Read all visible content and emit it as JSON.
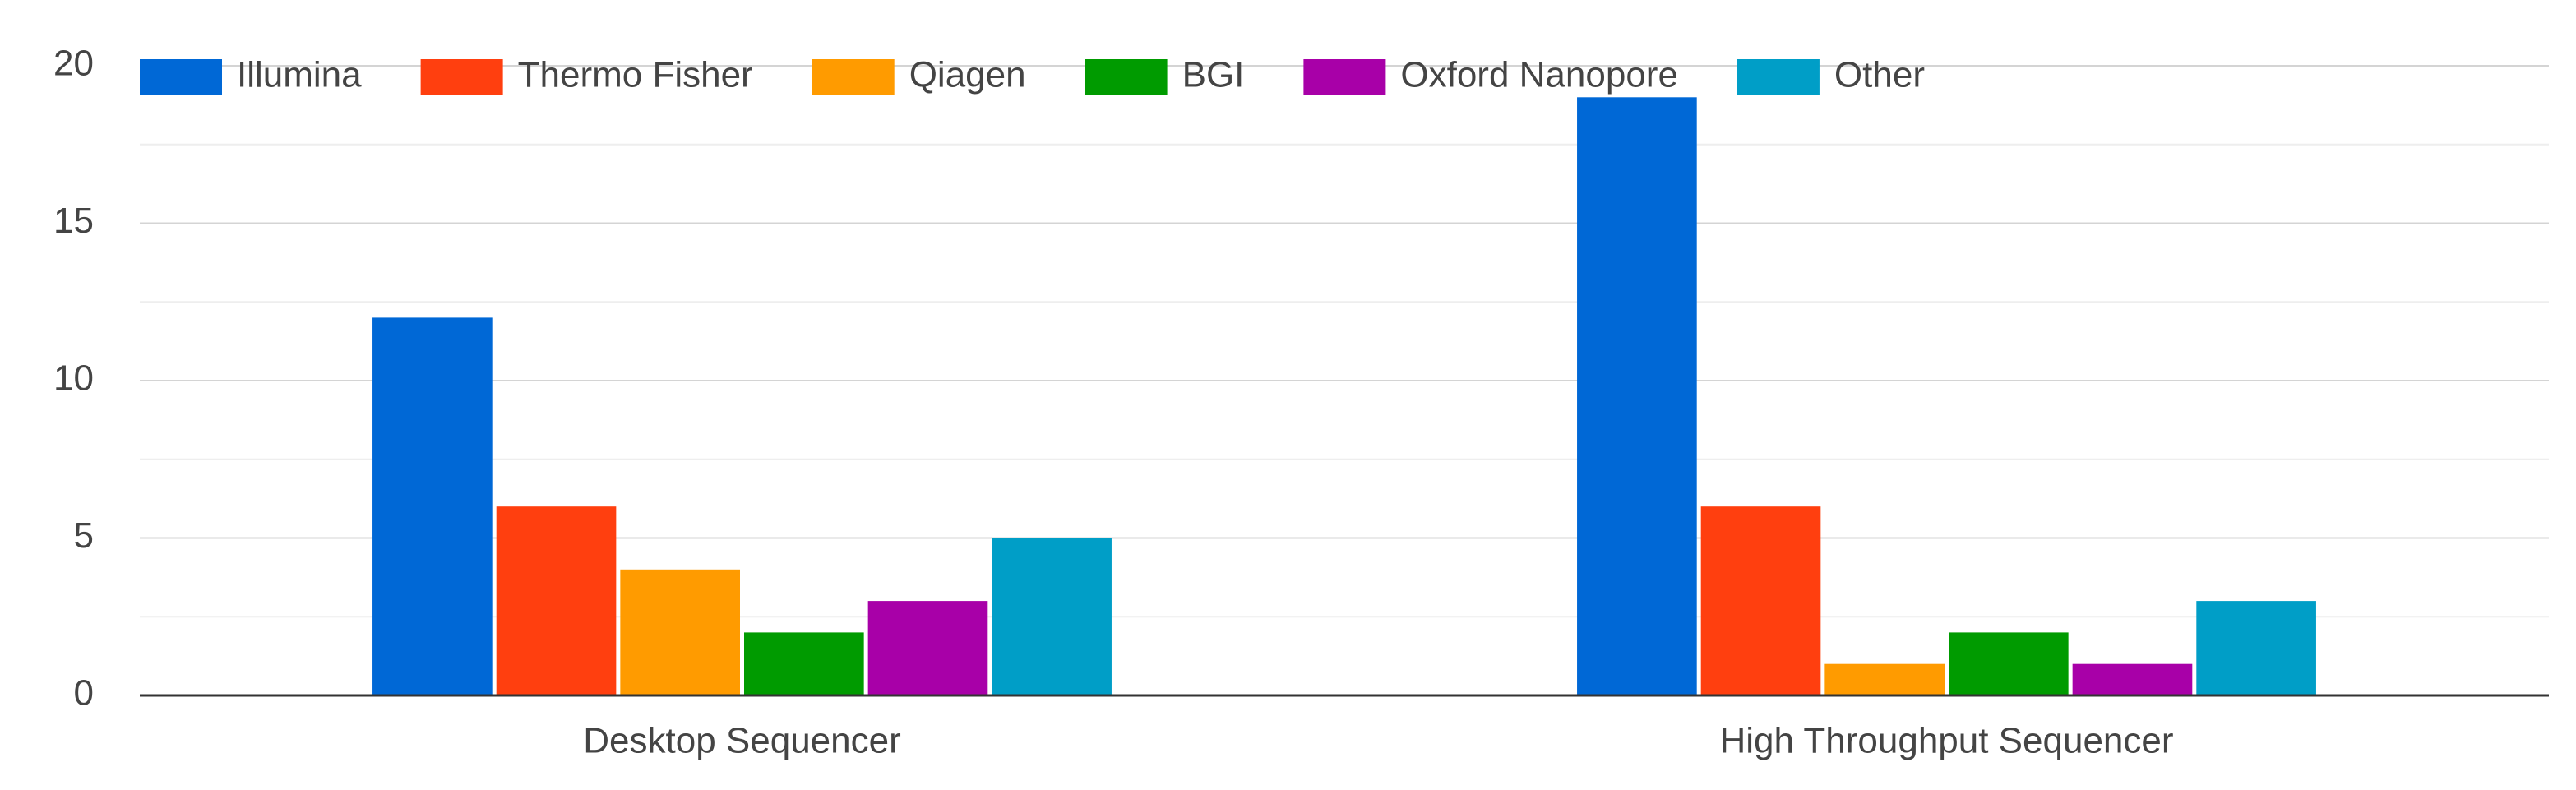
{
  "chart_data": {
    "type": "bar",
    "categories": [
      "Desktop Sequencer",
      "High Throughput Sequencer"
    ],
    "series": [
      {
        "name": "Illumina",
        "color": "#0068d6",
        "values": [
          12,
          19
        ]
      },
      {
        "name": "Thermo Fisher",
        "color": "#ff3f0f",
        "values": [
          6,
          6
        ]
      },
      {
        "name": "Qiagen",
        "color": "#ff9b00",
        "values": [
          4,
          1
        ]
      },
      {
        "name": "BGI",
        "color": "#009b00",
        "values": [
          2,
          2
        ]
      },
      {
        "name": "Oxford Nanopore",
        "color": "#a800a8",
        "values": [
          3,
          1
        ]
      },
      {
        "name": "Other",
        "color": "#009ec7",
        "values": [
          5,
          3
        ]
      }
    ],
    "ylim": [
      0,
      20
    ],
    "yticks": [
      0,
      5,
      10,
      15,
      20
    ],
    "minor_yticks": [
      2.5,
      7.5,
      12.5,
      17.5
    ],
    "grid": true,
    "legend": "top"
  }
}
